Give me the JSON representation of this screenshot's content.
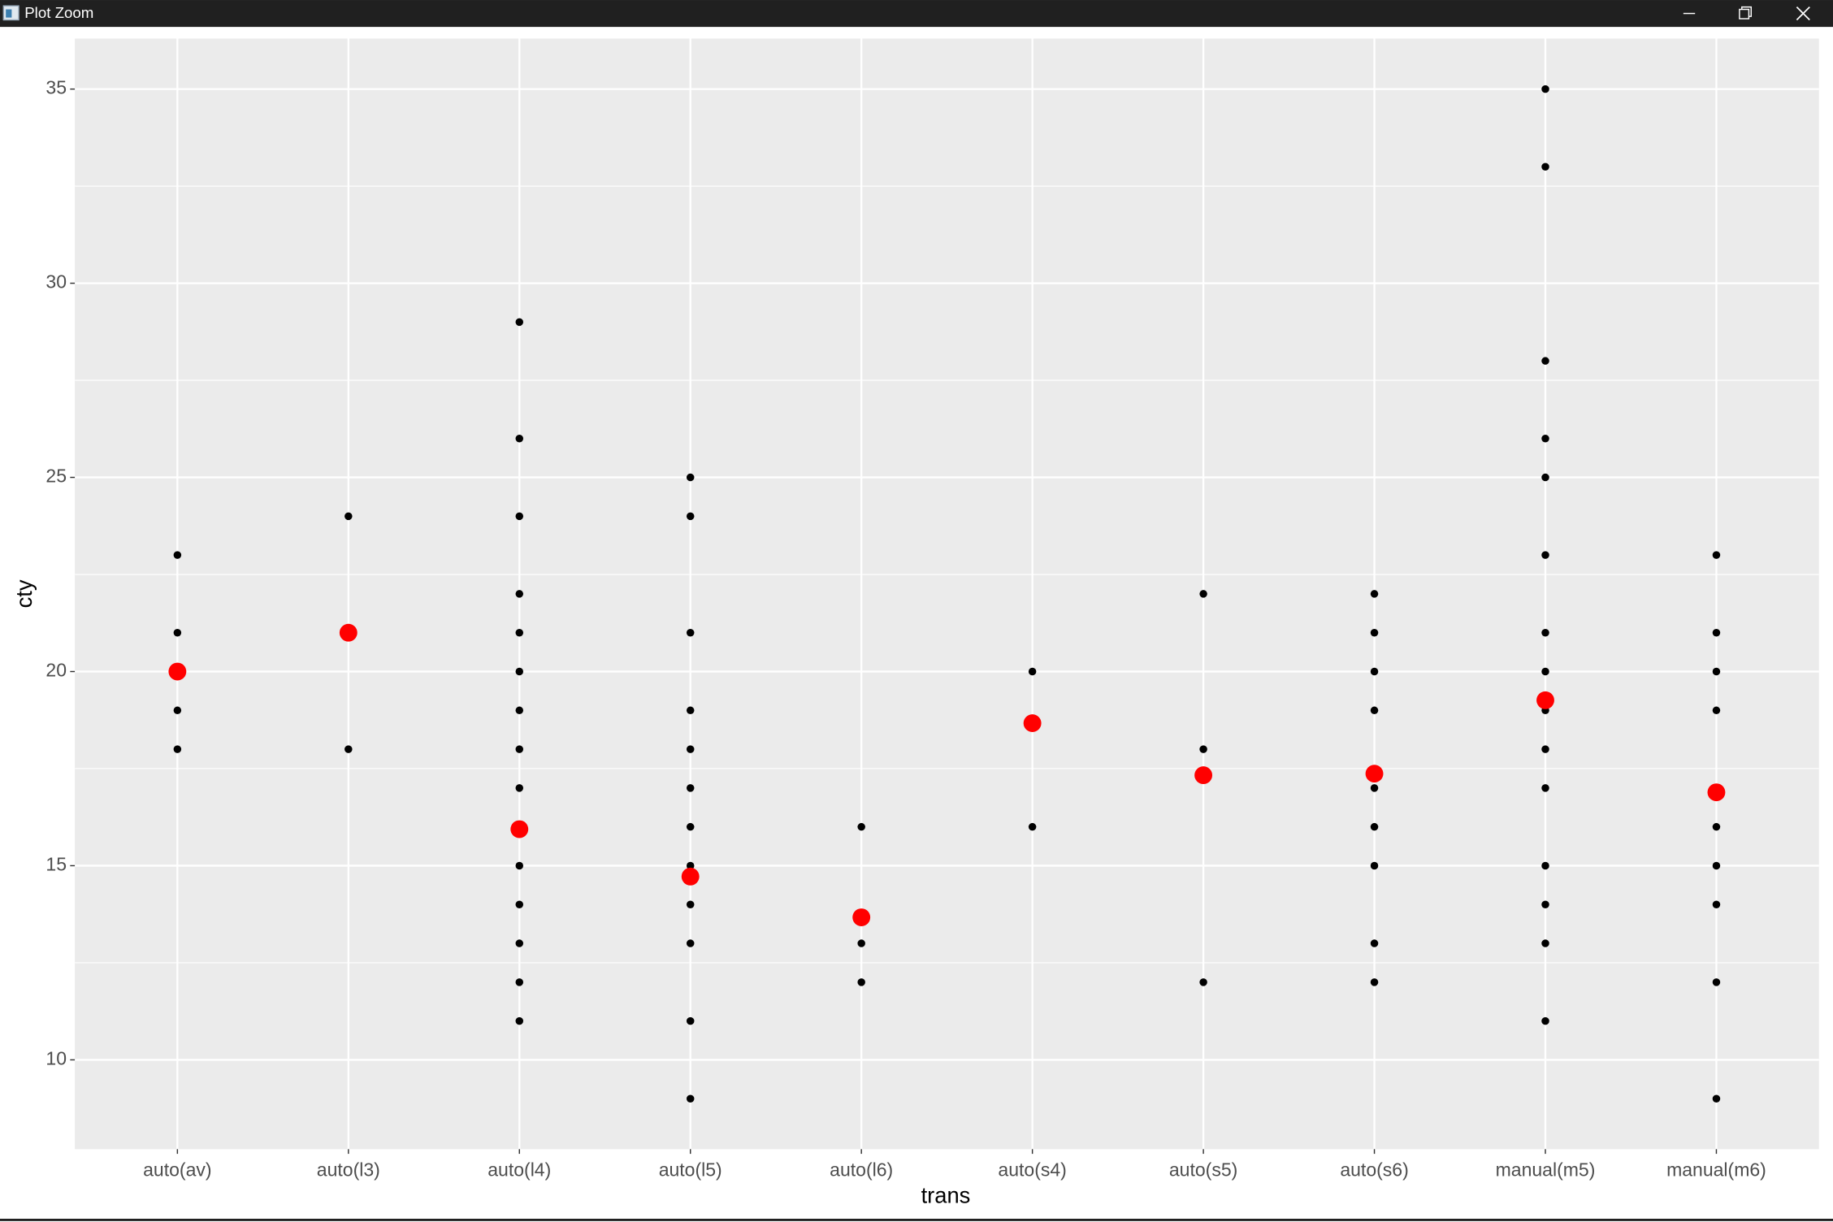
{
  "window": {
    "title": "Plot Zoom"
  },
  "chart_data": {
    "type": "strip",
    "x_label": "trans",
    "y_label": "cty",
    "categories": [
      "auto(av)",
      "auto(l3)",
      "auto(l4)",
      "auto(l5)",
      "auto(l6)",
      "auto(s4)",
      "auto(s5)",
      "auto(s6)",
      "manual(m5)",
      "manual(m6)"
    ],
    "values": [
      [
        23,
        21,
        19,
        18
      ],
      [
        24,
        18
      ],
      [
        29,
        26,
        24,
        22,
        21,
        20,
        19,
        18,
        17,
        16,
        15,
        14,
        13,
        12,
        11
      ],
      [
        25,
        24,
        21,
        19,
        18,
        17,
        16,
        15,
        14,
        13,
        11,
        9
      ],
      [
        16,
        13,
        12
      ],
      [
        20,
        16
      ],
      [
        22,
        18,
        12
      ],
      [
        22,
        21,
        20,
        19,
        17,
        16,
        15,
        13,
        12
      ],
      [
        35,
        33,
        28,
        26,
        25,
        23,
        21,
        20,
        19,
        18,
        17,
        15,
        14,
        13,
        11
      ],
      [
        23,
        21,
        20,
        19,
        16,
        15,
        14,
        12,
        9
      ]
    ],
    "means": [
      20,
      21,
      15.94,
      14.72,
      13.67,
      18.67,
      17.33,
      17.37,
      19.26,
      16.89
    ],
    "point_color": "#000000",
    "mean_color": "#ff0000",
    "ylim": [
      7.7,
      36.3
    ],
    "yticks": [
      10,
      15,
      20,
      25,
      30,
      35
    ],
    "yminor": [
      12.5,
      17.5,
      22.5,
      27.5,
      32.5
    ],
    "grid": true
  }
}
